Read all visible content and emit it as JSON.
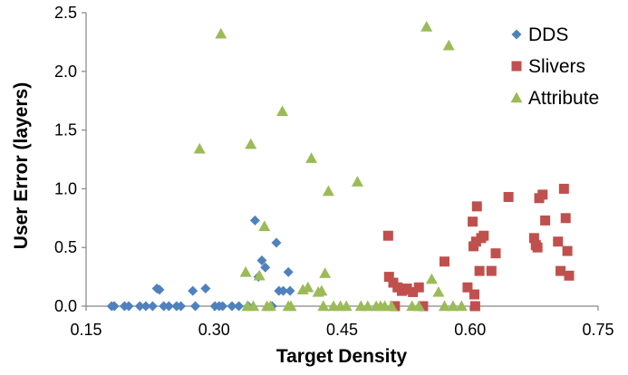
{
  "chart_data": {
    "type": "scatter",
    "xlabel": "Target Density",
    "ylabel": "User Error (layers)",
    "xlim": [
      0.15,
      0.75
    ],
    "ylim": [
      0,
      2.5
    ],
    "x_ticks": [
      0.15,
      0.3,
      0.45,
      0.6,
      0.75
    ],
    "x_tick_labels": [
      "0.15",
      "0.30",
      "0.45",
      "0.60",
      "0.75"
    ],
    "y_ticks": [
      0,
      0.5,
      1.0,
      1.5,
      2.0,
      2.5
    ],
    "y_tick_labels": [
      "0.0",
      "0.5",
      "1.0",
      "1.5",
      "2.0",
      "2.5"
    ],
    "grid": false,
    "legend_position": "top-right",
    "series": [
      {
        "name": "DDS",
        "marker": "diamond",
        "color": "#4f81bd",
        "points": [
          [
            0.18,
            0
          ],
          [
            0.183,
            0
          ],
          [
            0.195,
            0
          ],
          [
            0.2,
            0
          ],
          [
            0.213,
            0
          ],
          [
            0.22,
            0
          ],
          [
            0.228,
            0
          ],
          [
            0.233,
            0.15
          ],
          [
            0.236,
            0.14
          ],
          [
            0.241,
            0
          ],
          [
            0.247,
            0
          ],
          [
            0.256,
            0
          ],
          [
            0.261,
            0
          ],
          [
            0.275,
            0.13
          ],
          [
            0.278,
            0
          ],
          [
            0.29,
            0.15
          ],
          [
            0.301,
            0
          ],
          [
            0.306,
            0
          ],
          [
            0.31,
            0
          ],
          [
            0.321,
            0
          ],
          [
            0.329,
            0
          ],
          [
            0.34,
            0
          ],
          [
            0.348,
            0.73
          ],
          [
            0.352,
            0.25
          ],
          [
            0.356,
            0.39
          ],
          [
            0.36,
            0.33
          ],
          [
            0.368,
            0
          ],
          [
            0.373,
            0.54
          ],
          [
            0.376,
            0.13
          ],
          [
            0.381,
            0.13
          ],
          [
            0.387,
            0.29
          ],
          [
            0.389,
            0.13
          ]
        ]
      },
      {
        "name": "Slivers",
        "marker": "square",
        "color": "#c0504d",
        "points": [
          [
            0.504,
            0.6
          ],
          [
            0.505,
            0.25
          ],
          [
            0.51,
            0.2
          ],
          [
            0.512,
            0
          ],
          [
            0.515,
            0.16
          ],
          [
            0.52,
            0.13
          ],
          [
            0.523,
            0.14
          ],
          [
            0.526,
            0.15
          ],
          [
            0.533,
            0.12
          ],
          [
            0.54,
            0.16
          ],
          [
            0.545,
            0
          ],
          [
            0.57,
            0.38
          ],
          [
            0.597,
            0.16
          ],
          [
            0.603,
            0.72
          ],
          [
            0.604,
            0.51
          ],
          [
            0.605,
            0.1
          ],
          [
            0.606,
            0
          ],
          [
            0.607,
            0.55
          ],
          [
            0.608,
            0.85
          ],
          [
            0.611,
            0.3
          ],
          [
            0.613,
            0.58
          ],
          [
            0.616,
            0.6
          ],
          [
            0.625,
            0.3
          ],
          [
            0.63,
            0.45
          ],
          [
            0.645,
            0.93
          ],
          [
            0.675,
            0.58
          ],
          [
            0.677,
            0.52
          ],
          [
            0.679,
            0.5
          ],
          [
            0.681,
            0.92
          ],
          [
            0.685,
            0.95
          ],
          [
            0.688,
            0.73
          ],
          [
            0.703,
            0.55
          ],
          [
            0.706,
            0.3
          ],
          [
            0.71,
            1.0
          ],
          [
            0.712,
            0.75
          ],
          [
            0.714,
            0.47
          ],
          [
            0.716,
            0.26
          ]
        ]
      },
      {
        "name": "Attribute",
        "marker": "triangle",
        "color": "#9bbb59",
        "points": [
          [
            0.283,
            1.34
          ],
          [
            0.308,
            2.32
          ],
          [
            0.337,
            0.29
          ],
          [
            0.339,
            0
          ],
          [
            0.343,
            1.38
          ],
          [
            0.346,
            0
          ],
          [
            0.353,
            0.26
          ],
          [
            0.359,
            0.68
          ],
          [
            0.362,
            0
          ],
          [
            0.366,
            0
          ],
          [
            0.38,
            1.66
          ],
          [
            0.387,
            0
          ],
          [
            0.39,
            0
          ],
          [
            0.404,
            0.14
          ],
          [
            0.41,
            0.16
          ],
          [
            0.414,
            1.26
          ],
          [
            0.422,
            0.12
          ],
          [
            0.426,
            0.13
          ],
          [
            0.428,
            0
          ],
          [
            0.43,
            0.28
          ],
          [
            0.434,
            0.98
          ],
          [
            0.44,
            0
          ],
          [
            0.448,
            0
          ],
          [
            0.455,
            0
          ],
          [
            0.468,
            1.06
          ],
          [
            0.472,
            0
          ],
          [
            0.48,
            0
          ],
          [
            0.49,
            0
          ],
          [
            0.495,
            0
          ],
          [
            0.5,
            0
          ],
          [
            0.508,
            0
          ],
          [
            0.532,
            0
          ],
          [
            0.54,
            0
          ],
          [
            0.549,
            2.38
          ],
          [
            0.555,
            0.23
          ],
          [
            0.563,
            0.12
          ],
          [
            0.57,
            0
          ],
          [
            0.575,
            2.22
          ],
          [
            0.58,
            0
          ],
          [
            0.59,
            0
          ]
        ]
      }
    ]
  }
}
